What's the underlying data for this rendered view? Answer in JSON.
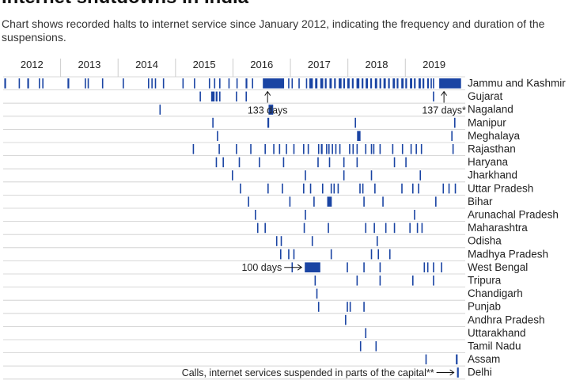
{
  "title": "Internet shutdowns in India",
  "subtitle": "Chart shows recorded halts to internet service since January 2012, indicating the frequency and duration of the suspensions.",
  "chart_data": {
    "type": "timeline",
    "x_range": [
      2012.0,
      2019.85
    ],
    "years": [
      "2012",
      "2013",
      "2014",
      "2015",
      "2016",
      "2017",
      "2018",
      "2019"
    ],
    "colors": {
      "bar": "#1a44a3",
      "grid": "#cccccc",
      "text": "#222222"
    },
    "rows": [
      {
        "state": "Jammu and Kashmir",
        "events": [
          [
            2012.02,
            0.03
          ],
          [
            2012.27,
            0.02
          ],
          [
            2012.42,
            0.03
          ],
          [
            2012.62,
            0.02
          ],
          [
            2012.68,
            0.02
          ],
          [
            2013.12,
            0.03
          ],
          [
            2013.42,
            0.02
          ],
          [
            2013.47,
            0.02
          ],
          [
            2013.72,
            0.02
          ],
          [
            2014.08,
            0.02
          ],
          [
            2014.52,
            0.02
          ],
          [
            2014.58,
            0.02
          ],
          [
            2014.64,
            0.02
          ],
          [
            2014.78,
            0.02
          ],
          [
            2015.12,
            0.02
          ],
          [
            2015.32,
            0.02
          ],
          [
            2015.58,
            0.02
          ],
          [
            2015.67,
            0.02
          ],
          [
            2015.76,
            0.02
          ],
          [
            2015.92,
            0.02
          ],
          [
            2016.06,
            0.02
          ],
          [
            2016.22,
            0.03
          ],
          [
            2016.33,
            0.02
          ],
          [
            2016.52,
            0.37
          ],
          [
            2016.96,
            0.02
          ],
          [
            2017.02,
            0.02
          ],
          [
            2017.14,
            0.02
          ],
          [
            2017.27,
            0.02
          ],
          [
            2017.33,
            0.06
          ],
          [
            2017.43,
            0.04
          ],
          [
            2017.52,
            0.05
          ],
          [
            2017.6,
            0.03
          ],
          [
            2017.68,
            0.04
          ],
          [
            2017.76,
            0.03
          ],
          [
            2017.84,
            0.05
          ],
          [
            2017.92,
            0.03
          ],
          [
            2017.99,
            0.04
          ],
          [
            2018.07,
            0.03
          ],
          [
            2018.15,
            0.05
          ],
          [
            2018.24,
            0.03
          ],
          [
            2018.31,
            0.04
          ],
          [
            2018.39,
            0.03
          ],
          [
            2018.47,
            0.04
          ],
          [
            2018.55,
            0.03
          ],
          [
            2018.62,
            0.04
          ],
          [
            2018.7,
            0.03
          ],
          [
            2018.78,
            0.04
          ],
          [
            2018.85,
            0.03
          ],
          [
            2018.93,
            0.04
          ],
          [
            2019.0,
            0.03
          ],
          [
            2019.08,
            0.04
          ],
          [
            2019.15,
            0.03
          ],
          [
            2019.23,
            0.04
          ],
          [
            2019.3,
            0.03
          ],
          [
            2019.38,
            0.03
          ],
          [
            2019.44,
            0.02
          ],
          [
            2019.48,
            0.02
          ],
          [
            2019.59,
            0.38
          ]
        ]
      },
      {
        "state": "Gujarat",
        "events": [
          [
            2015.42,
            0.02
          ],
          [
            2015.62,
            0.06
          ],
          [
            2015.7,
            0.03
          ],
          [
            2015.76,
            0.02
          ],
          [
            2016.05,
            0.02
          ],
          [
            2016.22,
            0.02
          ],
          [
            2019.48,
            0.02
          ]
        ]
      },
      {
        "state": "Nagaland",
        "events": [
          [
            2014.72,
            0.02
          ],
          [
            2016.62,
            0.08
          ]
        ]
      },
      {
        "state": "Manipur",
        "events": [
          [
            2015.64,
            0.02
          ],
          [
            2016.6,
            0.03
          ],
          [
            2018.12,
            0.02
          ],
          [
            2019.85,
            0.02
          ]
        ]
      },
      {
        "state": "Meghalaya",
        "events": [
          [
            2015.72,
            0.02
          ],
          [
            2018.16,
            0.06
          ],
          [
            2019.8,
            0.02
          ]
        ]
      },
      {
        "state": "Rajasthan",
        "events": [
          [
            2015.3,
            0.02
          ],
          [
            2015.75,
            0.02
          ],
          [
            2016.05,
            0.02
          ],
          [
            2016.3,
            0.02
          ],
          [
            2016.55,
            0.02
          ],
          [
            2016.7,
            0.02
          ],
          [
            2016.8,
            0.02
          ],
          [
            2016.92,
            0.02
          ],
          [
            2017.05,
            0.02
          ],
          [
            2017.22,
            0.02
          ],
          [
            2017.3,
            0.02
          ],
          [
            2017.48,
            0.02
          ],
          [
            2017.53,
            0.03
          ],
          [
            2017.62,
            0.02
          ],
          [
            2017.66,
            0.02
          ],
          [
            2017.72,
            0.02
          ],
          [
            2017.78,
            0.02
          ],
          [
            2017.85,
            0.02
          ],
          [
            2018.02,
            0.02
          ],
          [
            2018.08,
            0.02
          ],
          [
            2018.15,
            0.02
          ],
          [
            2018.3,
            0.02
          ],
          [
            2018.4,
            0.02
          ],
          [
            2018.44,
            0.02
          ],
          [
            2018.55,
            0.02
          ],
          [
            2018.77,
            0.02
          ],
          [
            2018.94,
            0.02
          ],
          [
            2019.09,
            0.02
          ],
          [
            2019.18,
            0.02
          ],
          [
            2019.27,
            0.02
          ],
          [
            2019.82,
            0.02
          ]
        ]
      },
      {
        "state": "Haryana",
        "events": [
          [
            2015.7,
            0.02
          ],
          [
            2015.82,
            0.02
          ],
          [
            2016.1,
            0.02
          ],
          [
            2016.45,
            0.02
          ],
          [
            2016.87,
            0.02
          ],
          [
            2017.47,
            0.02
          ],
          [
            2017.67,
            0.02
          ],
          [
            2017.92,
            0.02
          ],
          [
            2018.15,
            0.02
          ],
          [
            2018.8,
            0.02
          ],
          [
            2019.0,
            0.02
          ]
        ]
      },
      {
        "state": "Jharkhand",
        "events": [
          [
            2015.98,
            0.02
          ],
          [
            2017.25,
            0.02
          ],
          [
            2017.92,
            0.02
          ],
          [
            2018.4,
            0.02
          ],
          [
            2019.25,
            0.02
          ]
        ]
      },
      {
        "state": "Uttar Pradesh",
        "events": [
          [
            2016.12,
            0.02
          ],
          [
            2016.6,
            0.02
          ],
          [
            2016.85,
            0.02
          ],
          [
            2017.22,
            0.02
          ],
          [
            2017.34,
            0.02
          ],
          [
            2017.55,
            0.02
          ],
          [
            2017.7,
            0.02
          ],
          [
            2017.75,
            0.02
          ],
          [
            2017.82,
            0.02
          ],
          [
            2018.2,
            0.02
          ],
          [
            2018.25,
            0.02
          ],
          [
            2018.46,
            0.02
          ],
          [
            2018.93,
            0.02
          ],
          [
            2019.12,
            0.02
          ],
          [
            2019.22,
            0.02
          ],
          [
            2019.65,
            0.02
          ],
          [
            2019.75,
            0.02
          ],
          [
            2019.86,
            0.02
          ]
        ]
      },
      {
        "state": "Bihar",
        "events": [
          [
            2016.26,
            0.02
          ],
          [
            2016.98,
            0.02
          ],
          [
            2017.4,
            0.02
          ],
          [
            2017.64,
            0.08
          ],
          [
            2018.27,
            0.02
          ],
          [
            2018.6,
            0.02
          ],
          [
            2019.52,
            0.02
          ]
        ]
      },
      {
        "state": "Arunachal Pradesh",
        "events": [
          [
            2016.38,
            0.02
          ],
          [
            2017.25,
            0.02
          ],
          [
            2019.15,
            0.02
          ]
        ]
      },
      {
        "state": "Maharashtra",
        "events": [
          [
            2016.42,
            0.02
          ],
          [
            2016.55,
            0.02
          ],
          [
            2017.23,
            0.02
          ],
          [
            2017.65,
            0.02
          ],
          [
            2018.3,
            0.02
          ],
          [
            2018.45,
            0.02
          ],
          [
            2018.65,
            0.02
          ],
          [
            2018.8,
            0.02
          ],
          [
            2019.07,
            0.02
          ],
          [
            2019.2,
            0.02
          ],
          [
            2019.28,
            0.02
          ]
        ]
      },
      {
        "state": "Odisha",
        "events": [
          [
            2016.75,
            0.02
          ],
          [
            2016.83,
            0.02
          ],
          [
            2017.37,
            0.02
          ],
          [
            2018.5,
            0.02
          ]
        ]
      },
      {
        "state": "Madhya Pradesh",
        "events": [
          [
            2016.82,
            0.02
          ],
          [
            2016.96,
            0.02
          ],
          [
            2017.05,
            0.02
          ],
          [
            2017.7,
            0.02
          ],
          [
            2018.4,
            0.02
          ],
          [
            2018.52,
            0.02
          ],
          [
            2018.72,
            0.02
          ]
        ]
      },
      {
        "state": "West Bengal",
        "events": [
          [
            2017.02,
            0.02
          ],
          [
            2017.25,
            0.27
          ],
          [
            2017.98,
            0.02
          ],
          [
            2018.27,
            0.02
          ],
          [
            2018.55,
            0.02
          ],
          [
            2019.32,
            0.02
          ],
          [
            2019.38,
            0.02
          ],
          [
            2019.48,
            0.02
          ],
          [
            2019.62,
            0.02
          ]
        ]
      },
      {
        "state": "Tripura",
        "events": [
          [
            2017.42,
            0.02
          ],
          [
            2018.15,
            0.02
          ],
          [
            2018.55,
            0.02
          ],
          [
            2019.12,
            0.02
          ],
          [
            2019.48,
            0.02
          ]
        ]
      },
      {
        "state": "Chandigarh",
        "events": [
          [
            2017.45,
            0.02
          ]
        ]
      },
      {
        "state": "Punjab",
        "events": [
          [
            2017.48,
            0.02
          ],
          [
            2017.98,
            0.02
          ],
          [
            2018.03,
            0.02
          ],
          [
            2018.27,
            0.02
          ]
        ]
      },
      {
        "state": "Andhra Pradesh",
        "events": [
          [
            2017.95,
            0.02
          ]
        ]
      },
      {
        "state": "Uttarakhand",
        "events": [
          [
            2018.3,
            0.02
          ]
        ]
      },
      {
        "state": "Tamil Nadu",
        "events": [
          [
            2018.21,
            0.02
          ],
          [
            2018.48,
            0.02
          ]
        ]
      },
      {
        "state": "Assam",
        "events": [
          [
            2019.35,
            0.02
          ],
          [
            2019.88,
            0.03
          ]
        ]
      },
      {
        "state": "Delhi",
        "events": [
          [
            2019.9,
            0.03
          ]
        ]
      }
    ],
    "annotations": [
      {
        "label": "133 days",
        "row": "Jammu and Kashmir",
        "x": 2016.52,
        "arrow": "up"
      },
      {
        "label": "137 days*",
        "row": "Jammu and Kashmir",
        "x": 2019.59,
        "arrow": "up"
      },
      {
        "label": "100 days",
        "row": "West Bengal",
        "x": 2017.25,
        "arrow": "right"
      },
      {
        "label": "Calls, internet services suspended in parts of the capital**",
        "row": "Delhi",
        "x": 2019.9,
        "arrow": "right"
      }
    ]
  }
}
